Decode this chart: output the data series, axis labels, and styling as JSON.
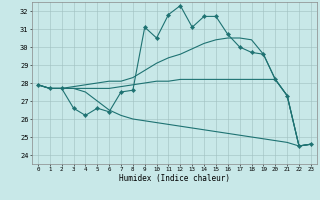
{
  "xlabel": "Humidex (Indice chaleur)",
  "bg_color": "#c8e8e8",
  "line_color": "#1e7272",
  "grid_color": "#a0c0c0",
  "xlim": [
    -0.5,
    23.5
  ],
  "ylim": [
    23.5,
    32.5
  ],
  "yticks": [
    24,
    25,
    26,
    27,
    28,
    29,
    30,
    31,
    32
  ],
  "xticks": [
    0,
    1,
    2,
    3,
    4,
    5,
    6,
    7,
    8,
    9,
    10,
    11,
    12,
    13,
    14,
    15,
    16,
    17,
    18,
    19,
    20,
    21,
    22,
    23
  ],
  "lines": [
    {
      "x": [
        0,
        1,
        2,
        3,
        4,
        5,
        6,
        7,
        8,
        9,
        10,
        11,
        12,
        13,
        14,
        15,
        16,
        17,
        18,
        19,
        20,
        21,
        22,
        23
      ],
      "y": [
        27.9,
        27.7,
        27.7,
        26.6,
        26.2,
        26.6,
        26.4,
        27.5,
        27.6,
        31.1,
        30.5,
        31.8,
        32.3,
        31.1,
        31.7,
        31.7,
        30.7,
        30.0,
        29.7,
        29.6,
        28.2,
        27.3,
        24.5,
        24.6
      ],
      "marker": true
    },
    {
      "x": [
        0,
        1,
        2,
        3,
        4,
        5,
        6,
        7,
        8,
        9,
        10,
        11,
        12,
        13,
        14,
        15,
        16,
        17,
        18,
        19,
        20,
        21,
        22,
        23
      ],
      "y": [
        27.9,
        27.7,
        27.7,
        27.8,
        27.9,
        28.0,
        28.1,
        28.1,
        28.3,
        28.7,
        29.1,
        29.4,
        29.6,
        29.9,
        30.2,
        30.4,
        30.5,
        30.5,
        30.4,
        29.6,
        28.2,
        27.3,
        24.5,
        24.6
      ],
      "marker": false
    },
    {
      "x": [
        0,
        1,
        2,
        3,
        4,
        5,
        6,
        7,
        8,
        9,
        10,
        11,
        12,
        13,
        14,
        15,
        16,
        17,
        18,
        19,
        20,
        21,
        22,
        23
      ],
      "y": [
        27.9,
        27.7,
        27.7,
        27.7,
        27.7,
        27.7,
        27.7,
        27.8,
        27.9,
        28.0,
        28.1,
        28.1,
        28.2,
        28.2,
        28.2,
        28.2,
        28.2,
        28.2,
        28.2,
        28.2,
        28.2,
        27.3,
        24.5,
        24.6
      ],
      "marker": false
    },
    {
      "x": [
        0,
        1,
        2,
        3,
        4,
        5,
        6,
        7,
        8,
        9,
        10,
        11,
        12,
        13,
        14,
        15,
        16,
        17,
        18,
        19,
        20,
        21,
        22,
        23
      ],
      "y": [
        27.9,
        27.7,
        27.7,
        27.7,
        27.5,
        27.0,
        26.5,
        26.2,
        26.0,
        25.9,
        25.8,
        25.7,
        25.6,
        25.5,
        25.4,
        25.3,
        25.2,
        25.1,
        25.0,
        24.9,
        24.8,
        24.7,
        24.5,
        24.6
      ],
      "marker": false
    }
  ]
}
